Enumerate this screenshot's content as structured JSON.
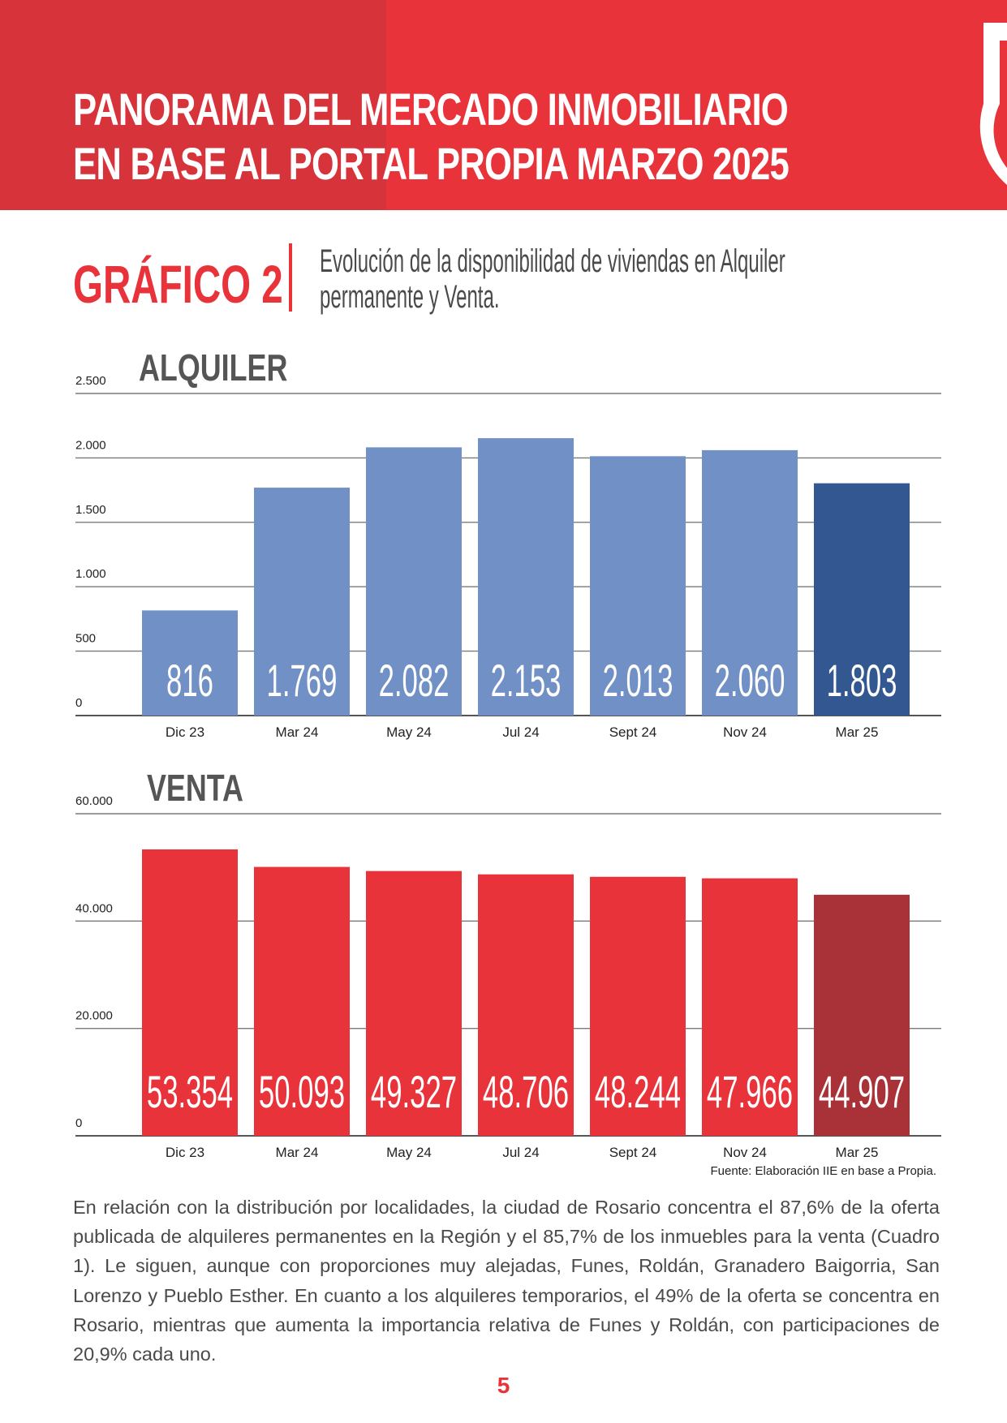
{
  "header": {
    "title_line1": "PANORAMA DEL MERCADO INMOBILIARIO",
    "title_line2": "EN BASE AL PORTAL PROPIA MARZO 2025",
    "logo_icon": "propia-logo-icon"
  },
  "figure": {
    "label": "GRÁFICO 2",
    "subtitle_line1": "Evolución de la disponibilidad de viviendas en Alquiler",
    "subtitle_line2": "permanente y Venta."
  },
  "colors": {
    "brand_red": "#e8333b",
    "alquiler_bar": "#7090c6",
    "alquiler_highlight": "#335891",
    "venta_bar": "#e8333b",
    "venta_highlight": "#a93238"
  },
  "chart_data": [
    {
      "type": "bar",
      "title": "ALQUILER",
      "categories": [
        "Dic 23",
        "Mar 24",
        "May 24",
        "Jul 24",
        "Sept 24",
        "Nov 24",
        "Mar 25"
      ],
      "values": [
        816,
        1769,
        2082,
        2153,
        2013,
        2060,
        1803
      ],
      "value_labels": [
        "816",
        "1.769",
        "2.082",
        "2.153",
        "2.013",
        "2.060",
        "1.803"
      ],
      "highlight_index": 6,
      "ylim": [
        0,
        2500
      ],
      "yticks": [
        0,
        500,
        1000,
        1500,
        2000,
        2500
      ],
      "ytick_labels": [
        "0",
        "500",
        "1.000",
        "1.500",
        "2.000",
        "2.500"
      ],
      "grid": true
    },
    {
      "type": "bar",
      "title": "VENTA",
      "categories": [
        "Dic 23",
        "Mar 24",
        "May 24",
        "Jul 24",
        "Sept 24",
        "Nov 24",
        "Mar 25"
      ],
      "values": [
        53354,
        50093,
        49327,
        48706,
        48244,
        47966,
        44907
      ],
      "value_labels": [
        "53.354",
        "50.093",
        "49.327",
        "48.706",
        "48.244",
        "47.966",
        "44.907"
      ],
      "highlight_index": 6,
      "ylim": [
        0,
        60000
      ],
      "yticks": [
        0,
        20000,
        40000,
        60000
      ],
      "ytick_labels": [
        "0",
        "20.000",
        "40.000",
        "60.000"
      ],
      "grid": true
    }
  ],
  "source": "Fuente: Elaboración IIE en base a Propia.",
  "body_text": "En relación con la distribución por localidades, la ciudad de Rosario concentra el 87,6% de la oferta publicada de alquileres permanentes en la Región y el 85,7% de los inmuebles para la venta (Cuadro 1). Le siguen, aunque con proporciones muy alejadas, Funes, Roldán, Granadero Baigorria, San Lorenzo y Pueblo Esther. En cuanto a los alquileres temporarios, el 49% de la oferta se concentra en Rosario, mientras que aumenta la importancia relativa de Funes y Roldán, con participaciones de 20,9% cada uno.",
  "page_number": "5"
}
